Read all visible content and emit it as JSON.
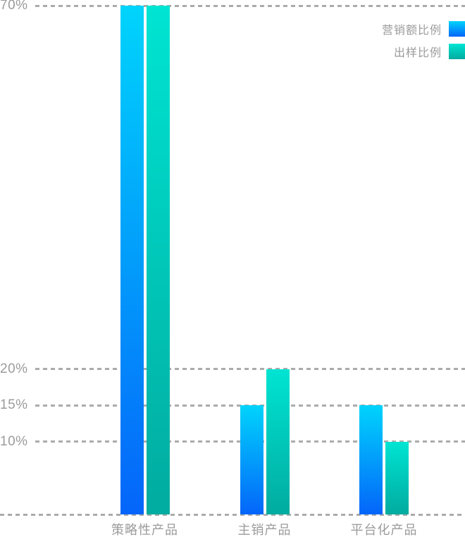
{
  "chart_data": {
    "type": "bar",
    "title": "",
    "categories": [
      "策略性产品",
      "主销产品",
      "平台化产品"
    ],
    "series": [
      {
        "name": "营销额比例",
        "values": [
          70,
          15,
          15
        ],
        "gradient_top": "#00d4fc",
        "gradient_bottom": "#0465fa"
      },
      {
        "name": "出样比例",
        "values": [
          70,
          20,
          10
        ],
        "gradient_top": "#00e4d3",
        "gradient_bottom": "#01ab9f"
      }
    ],
    "y_ticks": [
      {
        "value": 70,
        "label": "70%"
      },
      {
        "value": 20,
        "label": "20%"
      },
      {
        "value": 15,
        "label": "15%"
      },
      {
        "value": 10,
        "label": "10%"
      }
    ],
    "ylim": [
      0,
      70
    ],
    "grid": "dashed-horizontal-at-tick-values-and-baseline",
    "legend_position": "top-right"
  },
  "colors": {
    "background": "#ffffff",
    "text": "#9b9b9b",
    "gridline": "#ababab"
  }
}
